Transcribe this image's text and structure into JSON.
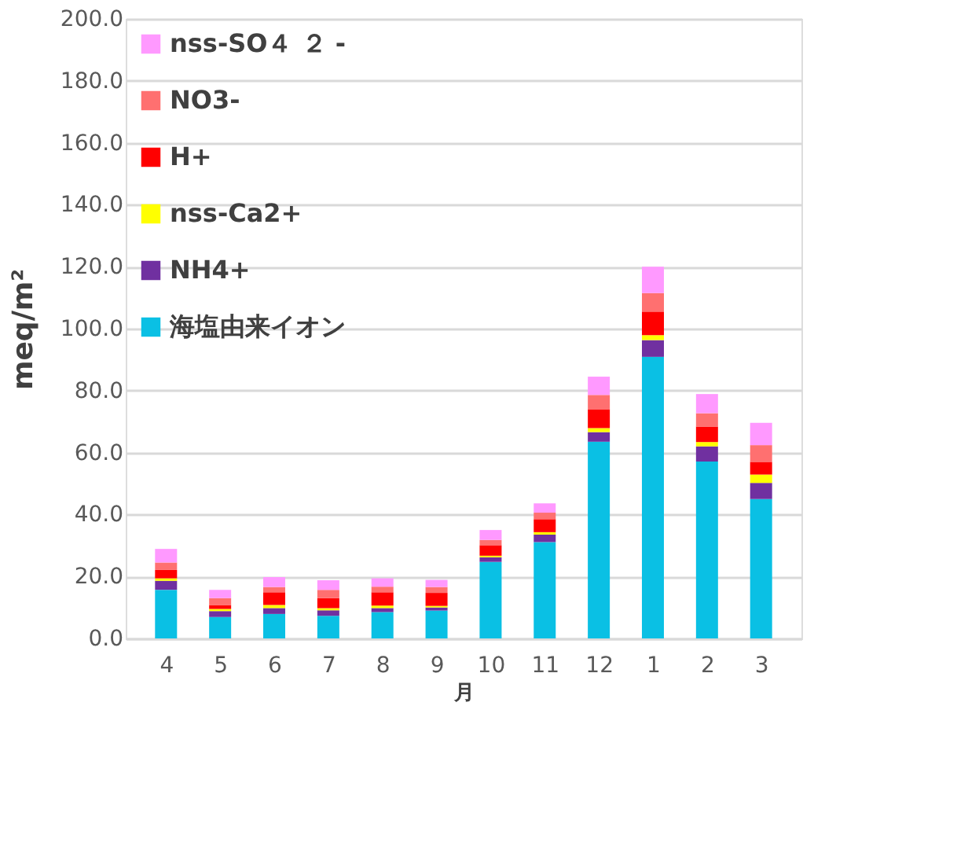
{
  "chart_data": {
    "type": "bar",
    "stacked": true,
    "xlabel": "月",
    "ylabel": "meq/m²",
    "categories": [
      "4",
      "5",
      "6",
      "7",
      "8",
      "9",
      "10",
      "11",
      "12",
      "1",
      "2",
      "3"
    ],
    "series": [
      {
        "name": "海塩由来イオン",
        "color": "#0ac0e4",
        "values": [
          15.7,
          6.9,
          7.9,
          7.3,
          8.5,
          9.0,
          24.7,
          31.1,
          63.5,
          90.9,
          57.1,
          45.0
        ]
      },
      {
        "name": "NH4+",
        "color": "#7030a0",
        "values": [
          2.9,
          1.9,
          1.9,
          1.8,
          1.3,
          1.0,
          1.5,
          2.4,
          3.1,
          5.4,
          4.9,
          5.2
        ]
      },
      {
        "name": "nss-Ca2+",
        "color": "#ffff00",
        "values": [
          0.8,
          0.7,
          1.0,
          0.7,
          0.8,
          0.5,
          0.5,
          0.8,
          1.3,
          1.6,
          1.4,
          2.7
        ]
      },
      {
        "name": "H+",
        "color": "#ff0000",
        "values": [
          2.7,
          1.3,
          4.1,
          3.2,
          4.3,
          4.2,
          3.4,
          4.2,
          6.1,
          7.6,
          5.0,
          4.1
        ]
      },
      {
        "name": "NO3-",
        "color": "#ff7070",
        "values": [
          2.4,
          2.2,
          1.7,
          2.7,
          1.8,
          1.9,
          1.7,
          2.1,
          4.6,
          6.0,
          4.3,
          5.4
        ]
      },
      {
        "name": "nss-SO４ ２ -",
        "color": "#ff99ff",
        "values": [
          4.4,
          2.7,
          3.2,
          3.1,
          2.7,
          2.3,
          3.2,
          3.0,
          5.9,
          8.5,
          6.2,
          7.2
        ]
      }
    ],
    "ylim": [
      0,
      200
    ],
    "yticks": [
      {
        "value": 0,
        "label": "0.0"
      },
      {
        "value": 20,
        "label": "20.0"
      },
      {
        "value": 40,
        "label": "40.0"
      },
      {
        "value": 60,
        "label": "60.0"
      },
      {
        "value": 80,
        "label": "80.0"
      },
      {
        "value": 100,
        "label": "100.0"
      },
      {
        "value": 120,
        "label": "120.0"
      },
      {
        "value": 140,
        "label": "140.0"
      },
      {
        "value": 160,
        "label": "160.0"
      },
      {
        "value": 180,
        "label": "180.0"
      },
      {
        "value": 200,
        "label": "200.0"
      }
    ],
    "grid": "y",
    "legend": "top left"
  }
}
